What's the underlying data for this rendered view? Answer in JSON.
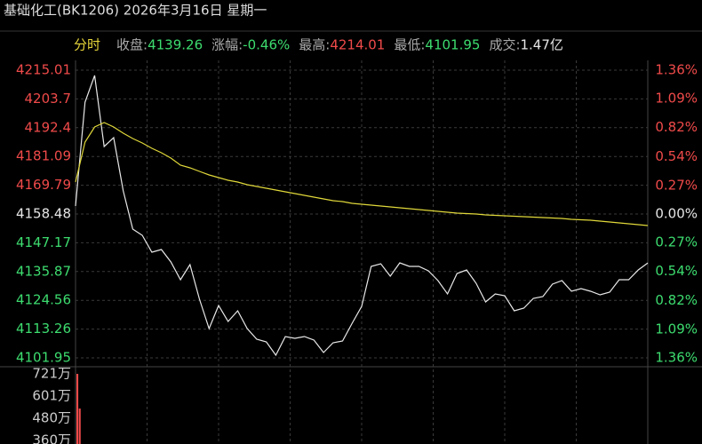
{
  "header": {
    "title": "基础化工(BK1206) 2026年3月16日 星期一"
  },
  "info": {
    "period": "分时",
    "items": [
      {
        "label": "收盘:",
        "value": "4139.26",
        "tone": "down"
      },
      {
        "label": "涨幅:",
        "value": "-0.46%",
        "tone": "down"
      },
      {
        "label": "最高:",
        "value": "4214.01",
        "tone": "up"
      },
      {
        "label": "最低:",
        "value": "4101.95",
        "tone": "down"
      },
      {
        "label": "成交:",
        "value": "1.47亿",
        "tone": "flat"
      }
    ]
  },
  "chart_data": [
    {
      "type": "line",
      "up_color": "#f04a4a",
      "down_color": "#3ddc6f",
      "flat_color": "#e6e6e6",
      "grid": true,
      "ylim": [
        4101.95,
        4215.01
      ],
      "yticks": [
        4215.01,
        4203.7,
        4192.4,
        4181.09,
        4169.79,
        4158.48,
        4147.17,
        4135.87,
        4124.56,
        4113.26,
        4101.95
      ],
      "y2lim": [
        -1.36,
        1.36
      ],
      "y2ticks": [
        {
          "value": 1.36,
          "label": "1.36%"
        },
        {
          "value": 1.09,
          "label": "1.09%"
        },
        {
          "value": 0.82,
          "label": "0.82%"
        },
        {
          "value": 0.54,
          "label": "0.54%"
        },
        {
          "value": 0.27,
          "label": "0.27%"
        },
        {
          "value": 0,
          "label": "0.00%"
        },
        {
          "value": -0.27,
          "label": "0.27%"
        },
        {
          "value": -0.54,
          "label": "0.54%"
        },
        {
          "value": -0.82,
          "label": "0.82%"
        },
        {
          "value": -1.09,
          "label": "1.09%"
        },
        {
          "value": -1.36,
          "label": "1.36%"
        }
      ],
      "series": [
        {
          "name": "价格",
          "color": "#e8e8e8",
          "values": [
            4161.62,
            4202.45,
            4212.92,
            4185.0,
            4188.49,
            4167.55,
            4152.55,
            4150.11,
            4143.48,
            4144.52,
            4139.64,
            4132.66,
            4138.59,
            4124.98,
            4113.47,
            4122.54,
            4116.26,
            4120.44,
            4113.47,
            4109.28,
            4108.23,
            4103.0,
            4110.32,
            4109.63,
            4110.32,
            4108.93,
            4104.04,
            4107.88,
            4108.58,
            4115.56,
            4122.19,
            4137.89,
            4138.94,
            4134.05,
            4139.29,
            4137.89,
            4137.89,
            4136.15,
            4132.31,
            4127.07,
            4135.1,
            4136.5,
            4131.26,
            4123.93,
            4127.07,
            4126.38,
            4120.44,
            4121.49,
            4125.33,
            4126.03,
            4130.91,
            4132.31,
            4128.12,
            4129.17,
            4128.12,
            4126.73,
            4127.77,
            4132.66,
            4132.66,
            4136.5,
            4139.26
          ]
        },
        {
          "name": "均价",
          "color": "#e0d83a",
          "values": [
            4171.04,
            4186.75,
            4192.68,
            4194.42,
            4192.68,
            4190.23,
            4188.14,
            4186.4,
            4184.3,
            4182.56,
            4180.46,
            4177.67,
            4176.63,
            4175.23,
            4173.83,
            4172.79,
            4171.74,
            4171.04,
            4170.0,
            4169.3,
            4168.6,
            4167.9,
            4167.2,
            4166.51,
            4165.81,
            4165.11,
            4164.41,
            4163.71,
            4163.37,
            4162.67,
            4162.32,
            4161.97,
            4161.62,
            4161.27,
            4160.92,
            4160.57,
            4160.22,
            4159.88,
            4159.53,
            4159.18,
            4158.83,
            4158.66,
            4158.48,
            4158.13,
            4157.96,
            4157.78,
            4157.61,
            4157.43,
            4157.26,
            4157.08,
            4156.91,
            4156.74,
            4156.39,
            4156.21,
            4156.04,
            4155.69,
            4155.34,
            4154.99,
            4154.64,
            4154.29,
            4153.94
          ]
        }
      ]
    },
    {
      "type": "bar",
      "color": "#f04a4a",
      "ylim": [
        360,
        721
      ],
      "yticks": [
        {
          "value": 721,
          "label": "721万"
        },
        {
          "value": 601,
          "label": "601万"
        },
        {
          "value": 480,
          "label": "480万"
        },
        {
          "value": 360,
          "label": "360万"
        }
      ],
      "values": [
        721,
        533
      ]
    }
  ]
}
